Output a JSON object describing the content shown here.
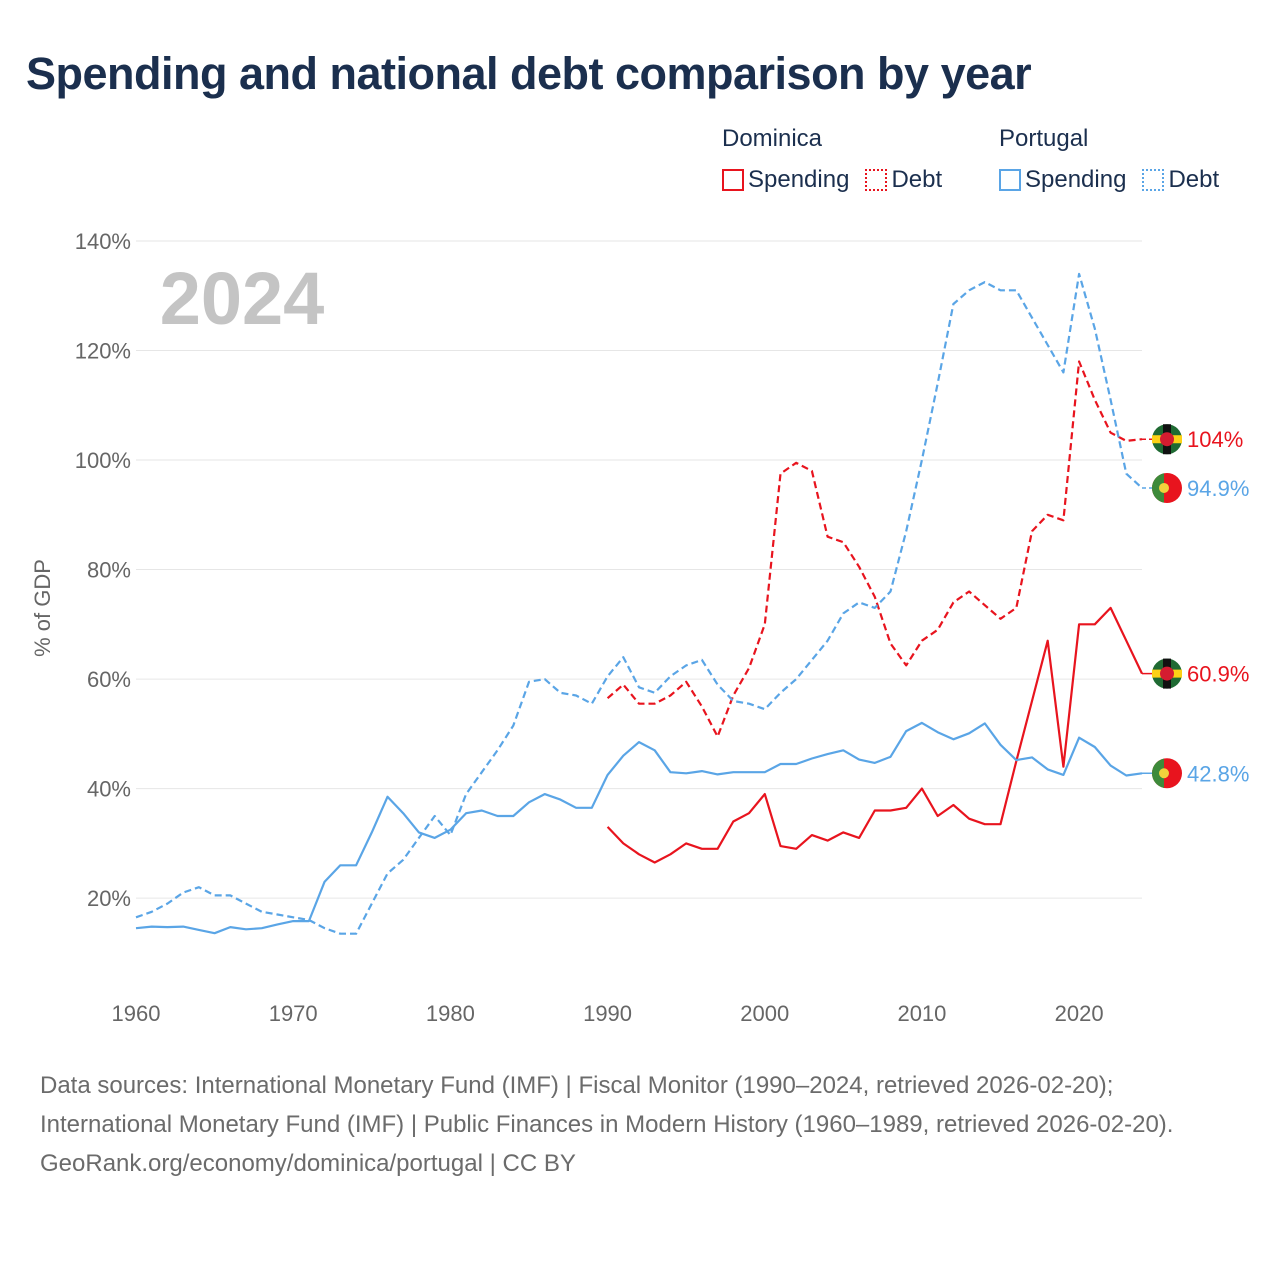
{
  "title": "Spending and national debt comparison by year",
  "year_label": "2024",
  "legend": {
    "dominica": {
      "name": "Dominica",
      "spending": "Spending",
      "debt": "Debt"
    },
    "portugal": {
      "name": "Portugal",
      "spending": "Spending",
      "debt": "Debt"
    }
  },
  "colors": {
    "dominica": "#e8141e",
    "portugal": "#5aa5e6",
    "grid": "#e6e6e6",
    "axis_text": "#666666",
    "title": "#1b2f4e",
    "year_watermark": "#c4c4c4"
  },
  "source": {
    "line1": "Data sources: International Monetary Fund (IMF) | Fiscal Monitor (1990–2024, retrieved 2026-02-20); International Monetary Fund (IMF) | Public Finances in Modern History (1960–1989, retrieved 2026-02-20).",
    "line2": "GeoRank.org/economy/dominica/portugal | CC BY"
  },
  "chart_data": {
    "type": "line",
    "title": "Spending and national debt comparison by year",
    "xlabel": "",
    "ylabel": "% of GDP",
    "xlim": [
      1960,
      2024
    ],
    "ylim": [
      4,
      140
    ],
    "x_ticks": [
      1960,
      1970,
      1980,
      1990,
      2000,
      2010,
      2020
    ],
    "x_tick_labels": [
      "1960",
      "1970",
      "1980",
      "1990",
      "2000",
      "2010",
      "2020"
    ],
    "y_ticks": [
      20,
      40,
      60,
      80,
      100,
      120,
      140
    ],
    "y_tick_labels": [
      "20%",
      "40%",
      "60%",
      "80%",
      "100%",
      "120%",
      "140%"
    ],
    "grid": true,
    "legend_position": "top-right",
    "series": [
      {
        "name": "Dominica Debt",
        "country": "dominica",
        "style": "dashed",
        "end_label": "104%",
        "x": [
          1990,
          1991,
          1992,
          1993,
          1994,
          1995,
          1996,
          1997,
          1998,
          1999,
          2000,
          2001,
          2002,
          2003,
          2004,
          2005,
          2006,
          2007,
          2008,
          2009,
          2010,
          2011,
          2012,
          2013,
          2014,
          2015,
          2016,
          2017,
          2018,
          2019,
          2020,
          2021,
          2022,
          2023,
          2024
        ],
        "values": [
          56.5,
          59,
          55.5,
          55.5,
          57,
          59.5,
          55,
          49.5,
          57,
          62,
          70,
          97.5,
          99.5,
          98,
          86,
          85,
          80.5,
          75,
          66.5,
          62.5,
          67,
          69,
          74,
          76,
          73.5,
          71,
          73,
          87,
          90,
          89,
          118,
          111,
          105,
          103.5,
          103.8
        ]
      },
      {
        "name": "Portugal Debt",
        "country": "portugal",
        "style": "dashed",
        "end_label": "94.9%",
        "x": [
          1960,
          1961,
          1962,
          1963,
          1964,
          1965,
          1966,
          1967,
          1968,
          1969,
          1970,
          1971,
          1972,
          1973,
          1974,
          1975,
          1976,
          1977,
          1978,
          1979,
          1980,
          1981,
          1982,
          1983,
          1984,
          1985,
          1986,
          1987,
          1988,
          1989,
          1990,
          1991,
          1992,
          1993,
          1994,
          1995,
          1996,
          1997,
          1998,
          1999,
          2000,
          2001,
          2002,
          2003,
          2004,
          2005,
          2006,
          2007,
          2008,
          2009,
          2010,
          2011,
          2012,
          2013,
          2014,
          2015,
          2016,
          2017,
          2018,
          2019,
          2020,
          2021,
          2022,
          2023,
          2024
        ],
        "values": [
          16.5,
          17.5,
          19,
          21,
          22,
          20.5,
          20.5,
          19,
          17.5,
          17,
          16.5,
          16,
          14.5,
          13.5,
          13.5,
          19,
          24.5,
          27,
          31,
          35,
          31.5,
          39,
          43,
          47,
          51.5,
          59.5,
          60,
          57.5,
          57,
          55.5,
          60.5,
          64,
          58.5,
          57.5,
          60.5,
          62.5,
          63.5,
          59,
          56,
          55.5,
          54.5,
          57.5,
          60,
          63.5,
          67,
          72,
          74,
          73,
          76,
          87,
          100,
          114,
          128.5,
          131,
          132.5,
          131,
          131,
          126,
          121,
          116,
          134,
          124,
          111,
          97.5,
          94.9
        ]
      },
      {
        "name": "Dominica Spending",
        "country": "dominica",
        "style": "solid",
        "end_label": "60.9%",
        "x": [
          1990,
          1991,
          1992,
          1993,
          1994,
          1995,
          1996,
          1997,
          1998,
          1999,
          2000,
          2001,
          2002,
          2003,
          2004,
          2005,
          2006,
          2007,
          2008,
          2009,
          2010,
          2011,
          2012,
          2013,
          2014,
          2015,
          2016,
          2017,
          2018,
          2019,
          2020,
          2021,
          2022,
          2023,
          2024
        ],
        "values": [
          33,
          30,
          28,
          26.5,
          28,
          30,
          29,
          29,
          34,
          35.5,
          39,
          29.5,
          29,
          31.5,
          30.5,
          32,
          31,
          36,
          36,
          36.5,
          40,
          35,
          37,
          34.5,
          33.5,
          33.5,
          45,
          56,
          67,
          44,
          70,
          70,
          73,
          67,
          61
        ]
      },
      {
        "name": "Portugal Spending",
        "country": "portugal",
        "style": "solid",
        "end_label": "42.8%",
        "x": [
          1960,
          1961,
          1962,
          1963,
          1964,
          1965,
          1966,
          1967,
          1968,
          1969,
          1970,
          1971,
          1972,
          1973,
          1974,
          1975,
          1976,
          1977,
          1978,
          1979,
          1980,
          1981,
          1982,
          1983,
          1984,
          1985,
          1986,
          1987,
          1988,
          1989,
          1990,
          1991,
          1992,
          1993,
          1994,
          1995,
          1996,
          1997,
          1998,
          1999,
          2000,
          2001,
          2002,
          2003,
          2004,
          2005,
          2006,
          2007,
          2008,
          2009,
          2010,
          2011,
          2012,
          2013,
          2014,
          2015,
          2016,
          2017,
          2018,
          2019,
          2020,
          2021,
          2022,
          2023,
          2024
        ],
        "values": [
          14.5,
          14.8,
          14.7,
          14.8,
          14.2,
          13.6,
          14.7,
          14.3,
          14.5,
          15.2,
          15.8,
          15.8,
          23,
          26,
          26,
          32,
          38.5,
          35.5,
          32,
          31,
          32.5,
          35.5,
          36,
          35,
          35,
          37.5,
          39,
          38,
          36.5,
          36.5,
          42.5,
          46,
          48.5,
          47,
          43,
          42.8,
          43.2,
          42.6,
          43,
          43,
          43,
          44.5,
          44.5,
          45.5,
          46.3,
          47,
          45.3,
          44.7,
          45.8,
          50.5,
          52,
          50.3,
          49,
          50.1,
          51.9,
          48,
          45.2,
          45.7,
          43.5,
          42.5,
          49.3,
          47.6,
          44.2,
          42.4,
          42.8
        ]
      }
    ]
  }
}
